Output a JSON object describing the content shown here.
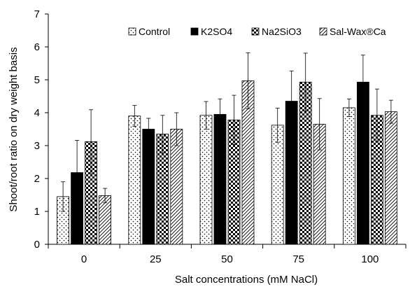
{
  "chart_data": {
    "type": "bar",
    "title": "",
    "xlabel": "Salt concentrations (mM NaCl)",
    "ylabel": "Shoot/root ratio on dry weight basis",
    "ylim": [
      0,
      7
    ],
    "yticks": [
      "0",
      "1",
      "2",
      "3",
      "4",
      "5",
      "6",
      "7"
    ],
    "categories": [
      "0",
      "25",
      "50",
      "75",
      "100"
    ],
    "legend_position": "top-right",
    "grid": false,
    "series": [
      {
        "name": "Control",
        "pattern": "dots",
        "values": [
          1.45,
          3.9,
          3.92,
          3.62,
          4.15
        ],
        "errors": [
          0.45,
          0.32,
          0.42,
          0.52,
          0.27
        ]
      },
      {
        "name": "K2SO4",
        "pattern": "solid",
        "values": [
          2.18,
          3.5,
          3.95,
          4.35,
          4.93
        ],
        "errors": [
          0.98,
          0.33,
          0.47,
          0.92,
          0.82
        ]
      },
      {
        "name": "Na2SiO3",
        "pattern": "checker",
        "values": [
          3.12,
          3.35,
          3.78,
          4.93,
          3.92
        ],
        "errors": [
          0.97,
          0.57,
          0.75,
          0.88,
          0.8
        ]
      },
      {
        "name": "Sal-Wax®Ca",
        "pattern": "diagonal",
        "values": [
          1.48,
          3.5,
          4.97,
          3.65,
          4.03
        ],
        "errors": [
          0.22,
          0.5,
          0.85,
          0.78,
          0.35
        ]
      }
    ]
  }
}
